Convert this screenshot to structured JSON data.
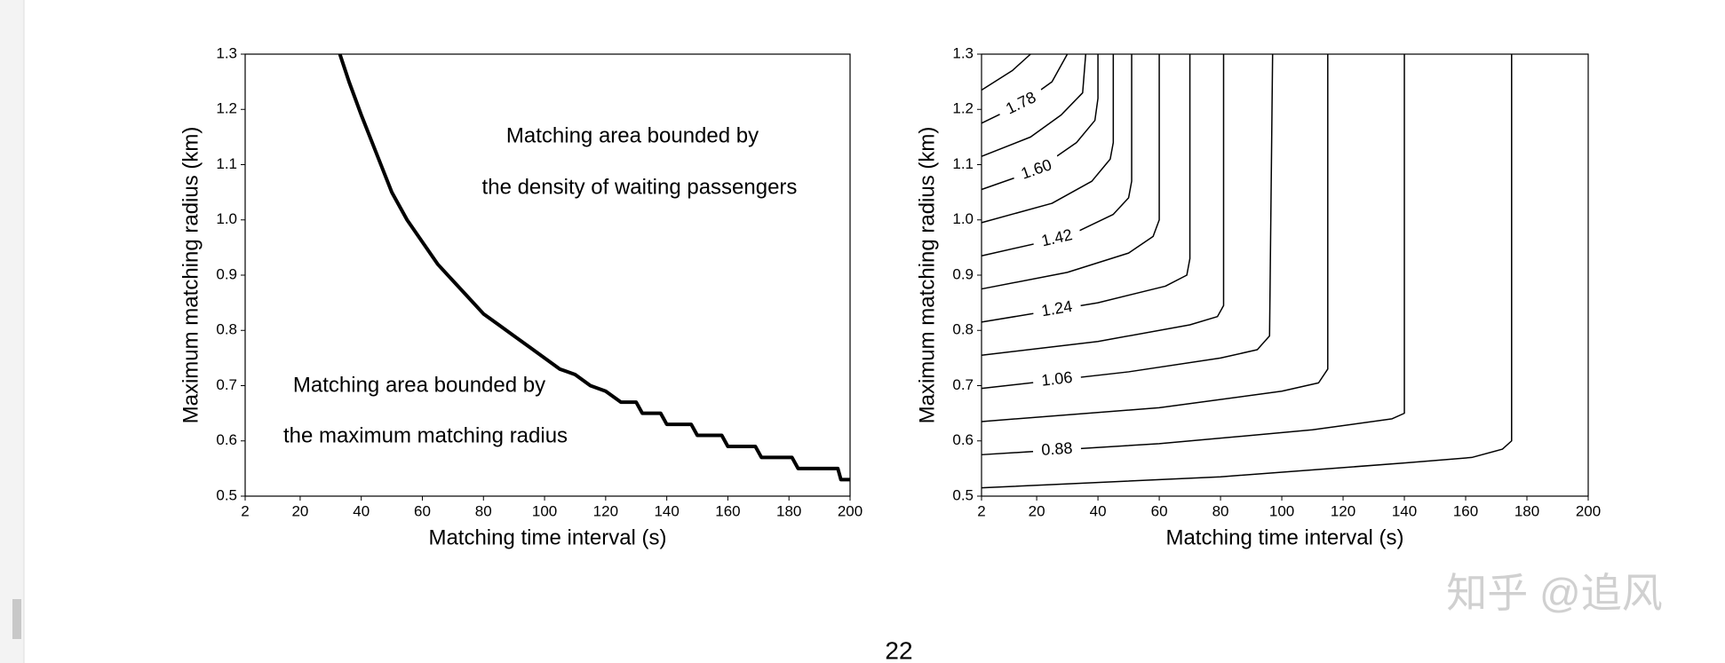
{
  "chart_data": [
    {
      "type": "line",
      "xlabel": "Matching time interval (s)",
      "ylabel": "Maximum matching radius (km)",
      "xlim": [
        2,
        200
      ],
      "ylim": [
        0.5,
        1.3
      ],
      "xticks": [
        2,
        20,
        40,
        60,
        80,
        100,
        120,
        140,
        160,
        180,
        200
      ],
      "yticks": [
        0.5,
        0.6,
        0.7,
        0.8,
        0.9,
        {
          "value": 1.0,
          "label": "1.0"
        },
        1.1,
        1.2,
        1.3
      ],
      "color": "#000000",
      "x": [
        33,
        36,
        40,
        45,
        50,
        55,
        60,
        65,
        70,
        75,
        80,
        85,
        90,
        95,
        100,
        105,
        110,
        115,
        120,
        125,
        130,
        132,
        138,
        140,
        148,
        150,
        158,
        160,
        169,
        171,
        181,
        183,
        196,
        197,
        200
      ],
      "y": [
        1.3,
        1.25,
        1.19,
        1.12,
        1.05,
        1.0,
        0.96,
        0.92,
        0.89,
        0.86,
        0.83,
        0.81,
        0.79,
        0.77,
        0.75,
        0.73,
        0.72,
        0.7,
        0.69,
        0.67,
        0.67,
        0.65,
        0.65,
        0.63,
        0.63,
        0.61,
        0.61,
        0.59,
        0.59,
        0.57,
        0.57,
        0.55,
        0.55,
        0.53,
        0.53
      ],
      "annotations": [
        "Matching area bounded by",
        "the density of waiting passengers",
        "Matching area bounded by",
        "the maximum matching radius"
      ]
    },
    {
      "type": "contour",
      "xlabel": "Matching time interval (s)",
      "ylabel": "Maximum matching radius (km)",
      "xlim": [
        2,
        200
      ],
      "ylim": [
        0.5,
        1.3
      ],
      "xticks": [
        2,
        20,
        40,
        60,
        80,
        100,
        120,
        140,
        160,
        180,
        200
      ],
      "yticks": [
        0.5,
        0.6,
        0.7,
        0.8,
        0.9,
        {
          "value": 1.0,
          "label": "1.0"
        },
        1.1,
        1.2,
        1.3
      ],
      "color": "#000000",
      "series": [
        {
          "x": [
            2,
            80,
            140,
            162,
            172,
            175,
            175
          ],
          "y": [
            0.515,
            0.535,
            0.56,
            0.57,
            0.585,
            0.6,
            1.3
          ]
        },
        {
          "x": [
            2,
            60,
            110,
            136,
            140,
            140
          ],
          "y": [
            0.575,
            0.595,
            0.62,
            0.64,
            0.65,
            1.3
          ],
          "label": "0.88"
        },
        {
          "x": [
            2,
            60,
            100,
            112,
            115,
            115
          ],
          "y": [
            0.635,
            0.66,
            0.69,
            0.705,
            0.73,
            1.3
          ]
        },
        {
          "x": [
            2,
            50,
            80,
            92,
            96,
            97
          ],
          "y": [
            0.695,
            0.725,
            0.75,
            0.765,
            0.79,
            1.3
          ],
          "label": "1.06"
        },
        {
          "x": [
            2,
            40,
            70,
            79,
            81,
            81
          ],
          "y": [
            0.755,
            0.78,
            0.81,
            0.825,
            0.845,
            1.3
          ]
        },
        {
          "x": [
            2,
            40,
            62,
            69,
            70,
            70
          ],
          "y": [
            0.815,
            0.85,
            0.88,
            0.9,
            0.93,
            1.3
          ],
          "label": "1.24"
        },
        {
          "x": [
            2,
            30,
            50,
            58,
            60,
            60
          ],
          "y": [
            0.875,
            0.905,
            0.94,
            0.97,
            1.0,
            1.3
          ]
        },
        {
          "x": [
            2,
            30,
            45,
            50,
            51,
            51
          ],
          "y": [
            0.935,
            0.97,
            1.01,
            1.04,
            1.07,
            1.3
          ],
          "label": "1.42"
        },
        {
          "x": [
            2,
            25,
            38,
            44,
            45,
            45
          ],
          "y": [
            0.995,
            1.03,
            1.07,
            1.11,
            1.14,
            1.3
          ]
        },
        {
          "x": [
            2,
            20,
            33,
            39,
            40,
            40
          ],
          "y": [
            1.055,
            1.09,
            1.14,
            1.18,
            1.22,
            1.3
          ],
          "label": "1.60"
        },
        {
          "x": [
            2,
            18,
            28,
            35,
            36
          ],
          "y": [
            1.115,
            1.15,
            1.19,
            1.23,
            1.3
          ]
        },
        {
          "x": [
            2,
            15,
            25,
            30
          ],
          "y": [
            1.175,
            1.21,
            1.25,
            1.3
          ],
          "label": "1.78"
        },
        {
          "x": [
            2,
            12,
            18
          ],
          "y": [
            1.235,
            1.27,
            1.3
          ]
        }
      ]
    }
  ],
  "page_number": "22",
  "watermark": "知乎 @追风"
}
